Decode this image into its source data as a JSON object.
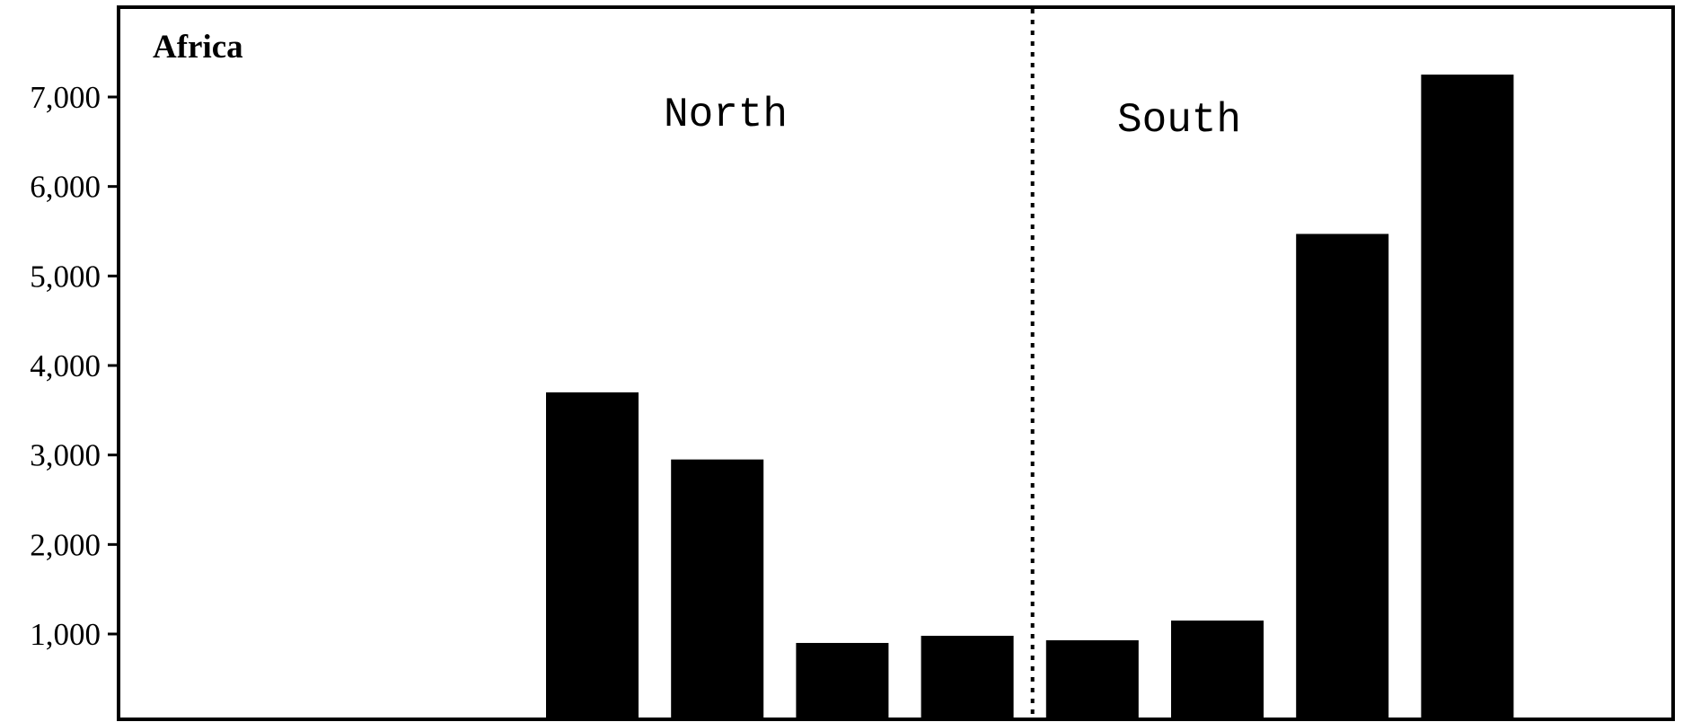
{
  "chart_data": {
    "type": "bar",
    "title": "Africa",
    "xlabel": "",
    "ylabel": "",
    "ylim": [
      0,
      8000
    ],
    "yticks": [
      1000,
      2000,
      3000,
      4000,
      5000,
      6000,
      7000
    ],
    "ytick_labels": [
      "1,000",
      "2,000",
      "3,000",
      "4,000",
      "5,000",
      "6,000",
      "7,000"
    ],
    "grid": false,
    "slots": 12,
    "bars": [
      {
        "slot": 4,
        "value": 3700
      },
      {
        "slot": 5,
        "value": 2950
      },
      {
        "slot": 6,
        "value": 900
      },
      {
        "slot": 7,
        "value": 980
      },
      {
        "slot": 8,
        "value": 930
      },
      {
        "slot": 9,
        "value": 1150
      },
      {
        "slot": 10,
        "value": 5470
      },
      {
        "slot": 11,
        "value": 7250
      }
    ],
    "divider_after_slot": 7,
    "annotations": [
      {
        "text": "North",
        "side": "left"
      },
      {
        "text": "South",
        "side": "right"
      }
    ],
    "bar_color": "#000000"
  }
}
